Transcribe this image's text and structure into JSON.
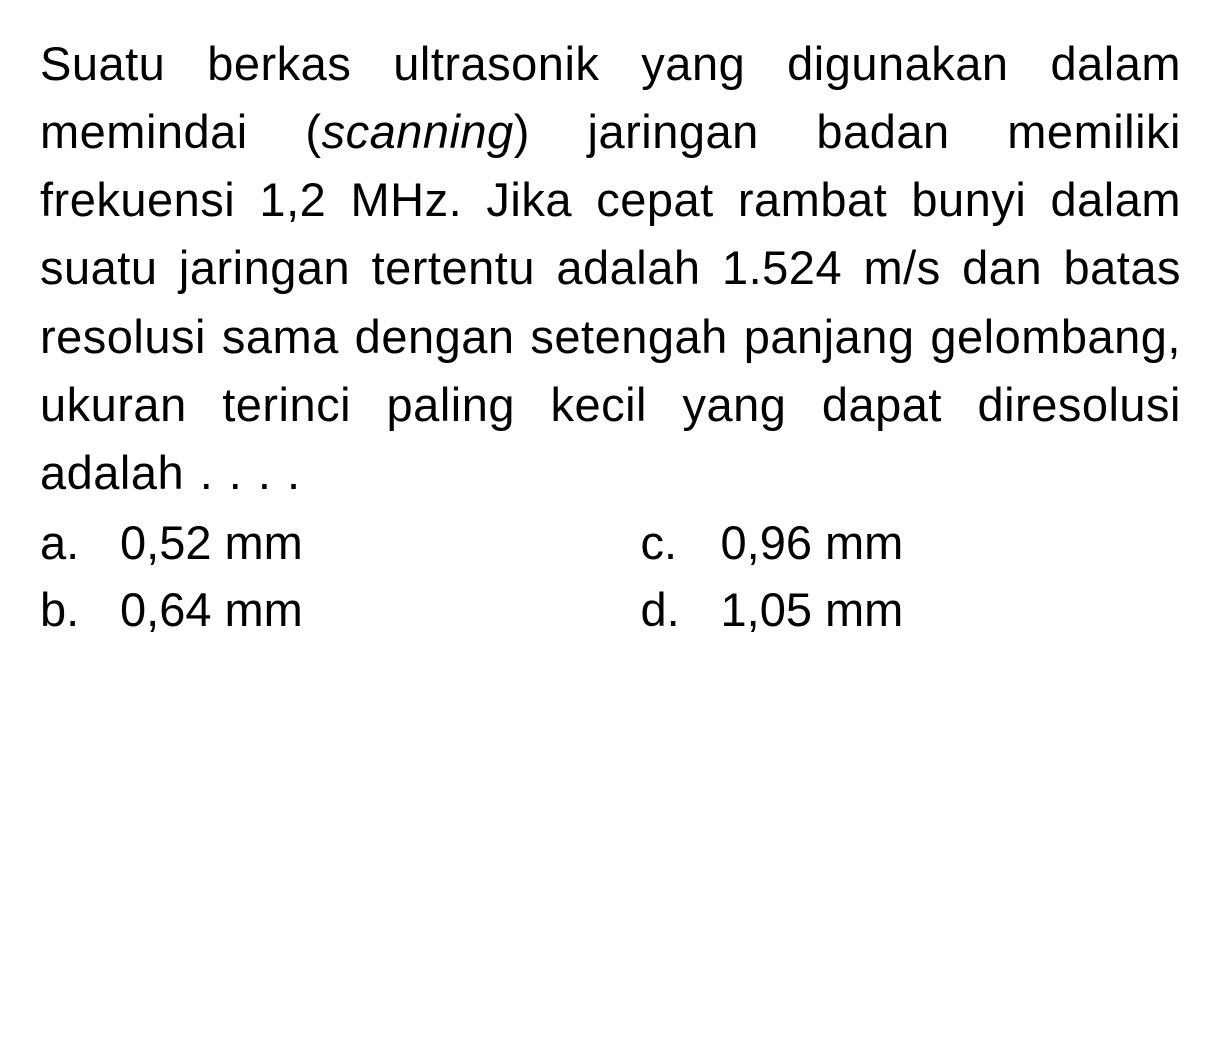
{
  "question": {
    "part1": "Suatu berkas ultrasonik yang digunakan dalam memindai (",
    "italic_word": "scanning",
    "part2": ") jaringan badan memiliki frekuensi 1,2 MHz. Jika cepat rambat bunyi dalam suatu jaringan tertentu adalah 1.524 m/s dan batas resolusi sama dengan setengah panjang gelombang, ukuran terinci paling kecil yang dapat diresolusi adalah . . . ."
  },
  "options": {
    "a": {
      "letter": "a.",
      "value": "0,52 mm"
    },
    "b": {
      "letter": "b.",
      "value": "0,64 mm"
    },
    "c": {
      "letter": "c.",
      "value": "0,96 mm"
    },
    "d": {
      "letter": "d.",
      "value": "1,05 mm"
    }
  },
  "style": {
    "font_size_pt": 35,
    "text_color": "#000000",
    "background_color": "#ffffff"
  }
}
